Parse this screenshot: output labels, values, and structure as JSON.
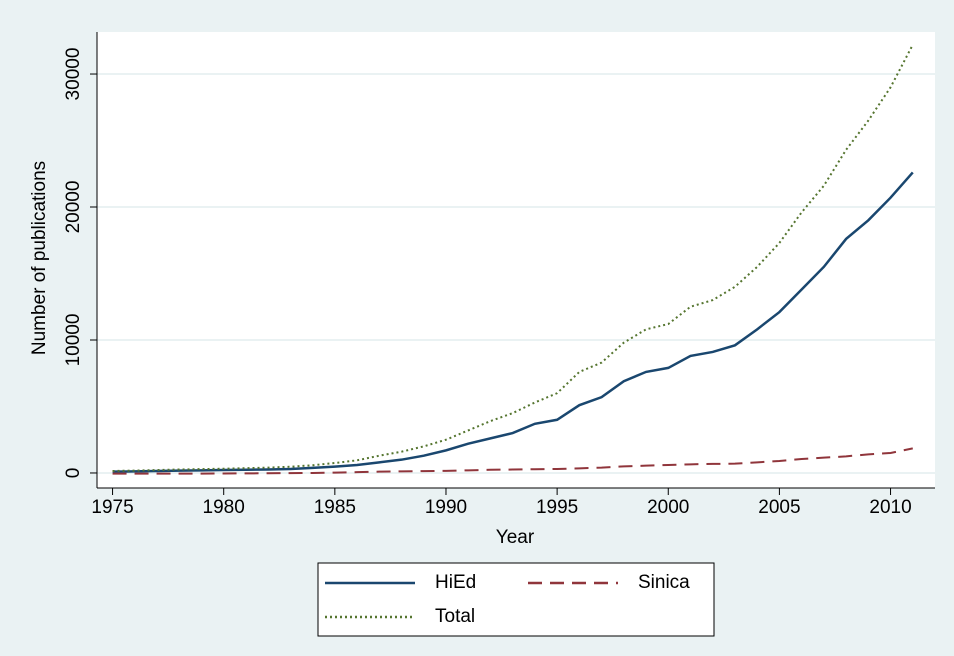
{
  "chart_data": {
    "type": "line",
    "x_label": "Year",
    "y_label": "Number of publications",
    "x": [
      1975,
      1976,
      1977,
      1978,
      1979,
      1980,
      1981,
      1982,
      1983,
      1984,
      1985,
      1986,
      1987,
      1988,
      1989,
      1990,
      1991,
      1992,
      1993,
      1994,
      1995,
      1996,
      1997,
      1998,
      1999,
      2000,
      2001,
      2002,
      2003,
      2004,
      2005,
      2006,
      2007,
      2008,
      2009,
      2010,
      2011
    ],
    "series": [
      {
        "name": "HiEd",
        "color": "#1a476f",
        "dash": "solid",
        "values": [
          100,
          120,
          150,
          180,
          200,
          220,
          240,
          260,
          300,
          380,
          480,
          600,
          800,
          1000,
          1300,
          1700,
          2200,
          2600,
          3000,
          3700,
          4000,
          5100,
          5700,
          6900,
          7600,
          7900,
          8800,
          9100,
          9600,
          10800,
          12100,
          13800,
          15500,
          17600,
          19000,
          20700,
          22600
        ]
      },
      {
        "name": "Sinica",
        "color": "#90353b",
        "dash": "dashed",
        "values": [
          -50,
          -50,
          -50,
          -50,
          -50,
          -40,
          -30,
          -20,
          -10,
          0,
          30,
          60,
          100,
          120,
          140,
          160,
          200,
          240,
          260,
          280,
          300,
          350,
          400,
          500,
          550,
          600,
          650,
          680,
          700,
          800,
          900,
          1050,
          1150,
          1250,
          1400,
          1500,
          1850
        ]
      },
      {
        "name": "Total",
        "color": "#55752f",
        "dash": "dotted",
        "values": [
          150,
          180,
          220,
          260,
          290,
          320,
          360,
          400,
          470,
          580,
          750,
          950,
          1300,
          1600,
          2000,
          2500,
          3200,
          3900,
          4500,
          5300,
          6000,
          7600,
          8300,
          9800,
          10800,
          11200,
          12500,
          13000,
          14000,
          15500,
          17300,
          19600,
          21600,
          24300,
          26500,
          29000,
          32200
        ]
      }
    ],
    "xlim": [
      1974.3,
      2012.0
    ],
    "xticks": [
      1975,
      1980,
      1985,
      1990,
      1995,
      2000,
      2005,
      2010
    ],
    "ylim": [
      -1130,
      33160
    ],
    "yticks": [
      0,
      10000,
      20000,
      30000
    ],
    "grid": true,
    "legend": "bottom"
  }
}
